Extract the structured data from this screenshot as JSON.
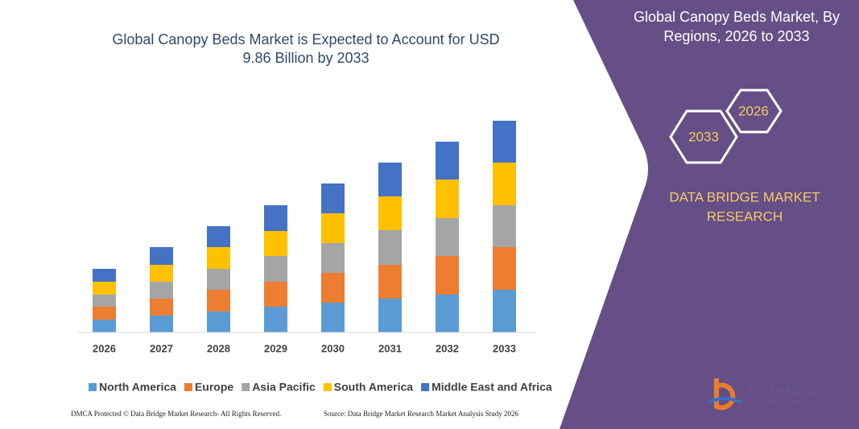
{
  "chart_data": {
    "type": "bar",
    "stacked": true,
    "title": [
      "Global Canopy Beds Market is Expected to Account for USD",
      "9.86 Billion by 2033"
    ],
    "categories": [
      "2026",
      "2027",
      "2028",
      "2029",
      "2030",
      "2031",
      "2032",
      "2033"
    ],
    "series": [
      {
        "name": "North America",
        "color": "#5b9bd5",
        "values": [
          1.6,
          2.1,
          2.6,
          3.2,
          3.7,
          4.2,
          4.7,
          5.3
        ]
      },
      {
        "name": "Europe",
        "color": "#ed7d31",
        "values": [
          1.6,
          2.1,
          2.7,
          3.1,
          3.7,
          4.2,
          4.8,
          5.3
        ]
      },
      {
        "name": "Asia Pacific",
        "color": "#a5a5a5",
        "values": [
          1.5,
          2.1,
          2.6,
          3.2,
          3.7,
          4.3,
          4.7,
          5.2
        ]
      },
      {
        "name": "South America",
        "color": "#ffc000",
        "values": [
          1.6,
          2.1,
          2.7,
          3.1,
          3.7,
          4.2,
          4.8,
          5.3
        ]
      },
      {
        "name": "Middle East and Africa",
        "color": "#4472c4",
        "values": [
          1.6,
          2.2,
          2.6,
          3.2,
          3.7,
          4.2,
          4.7,
          5.2
        ]
      }
    ],
    "footnote": "DMCA Protected © Data Bridge Market Research- All Rights Reserved.",
    "source": "Source: Data Bridge Market Research  Market Analysis Study 2026"
  },
  "panel": {
    "title": [
      "Global Canopy Beds Market, By",
      "Regions, 2026 to 2033"
    ],
    "hexagons": [
      "2026",
      "2033"
    ],
    "brand": [
      "DATA BRIDGE MARKET",
      "RESEARCH"
    ],
    "logo": [
      "DATA BRIDGE",
      "MARKET RESEARCH"
    ]
  }
}
